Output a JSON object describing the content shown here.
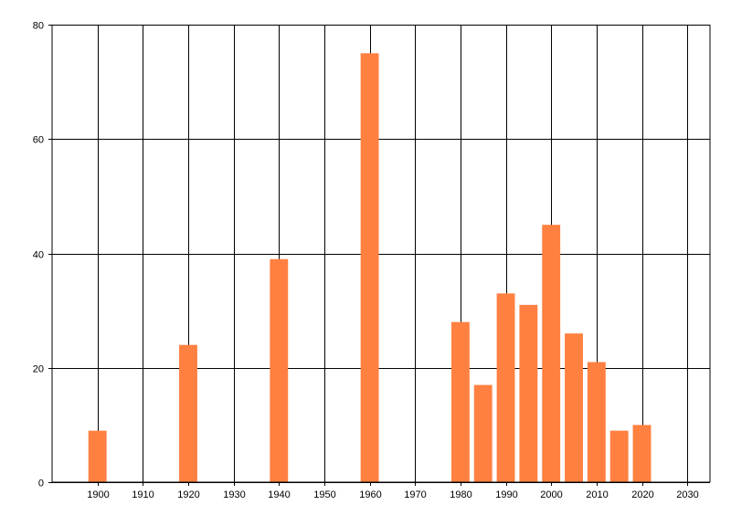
{
  "chart_data": {
    "type": "bar",
    "x": [
      1900,
      1920,
      1940,
      1960,
      1980,
      1985,
      1990,
      1995,
      2000,
      2005,
      2010,
      2015,
      2020
    ],
    "values": [
      9,
      24,
      39,
      75,
      28,
      17,
      33,
      31,
      45,
      26,
      21,
      9,
      10
    ],
    "xlim": [
      1890,
      2035
    ],
    "ylim": [
      0,
      80
    ],
    "x_ticks": [
      1900,
      1910,
      1920,
      1930,
      1940,
      1950,
      1960,
      1970,
      1980,
      1990,
      2000,
      2010,
      2020,
      2030
    ],
    "y_ticks": [
      0,
      20,
      40,
      60,
      80
    ],
    "grid": true,
    "bar_color": "#ff8040",
    "title": "",
    "xlabel": "",
    "ylabel": ""
  }
}
